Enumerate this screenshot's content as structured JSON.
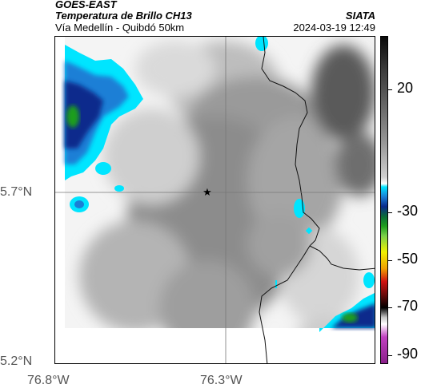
{
  "header": {
    "satellite": "GOES-EAST",
    "product": "Temperatura de Brillo CH13",
    "region": "Vía Medellín - Quibdó 50km",
    "organization": "SIATA",
    "timestamp": "2024-03-19 12:49"
  },
  "map": {
    "lat_labels": [
      "5.7°N",
      "5.2°N"
    ],
    "lon_labels": [
      "76.8°W",
      "76.3°W"
    ],
    "marker_icon": "star-icon"
  },
  "colorbar": {
    "labels": [
      "20",
      "-30",
      "-50",
      "-70",
      "-90"
    ],
    "colors": {
      "warm_top": "#0a0a0a",
      "gray_mid": "#888888",
      "white": "#ffffff",
      "cyan": "#00e5ff",
      "blue": "#0a2a8c",
      "green": "#1e9e1e",
      "yellow": "#f0f000",
      "red": "#d01010",
      "black": "#000000",
      "magenta": "#c040c0"
    }
  }
}
